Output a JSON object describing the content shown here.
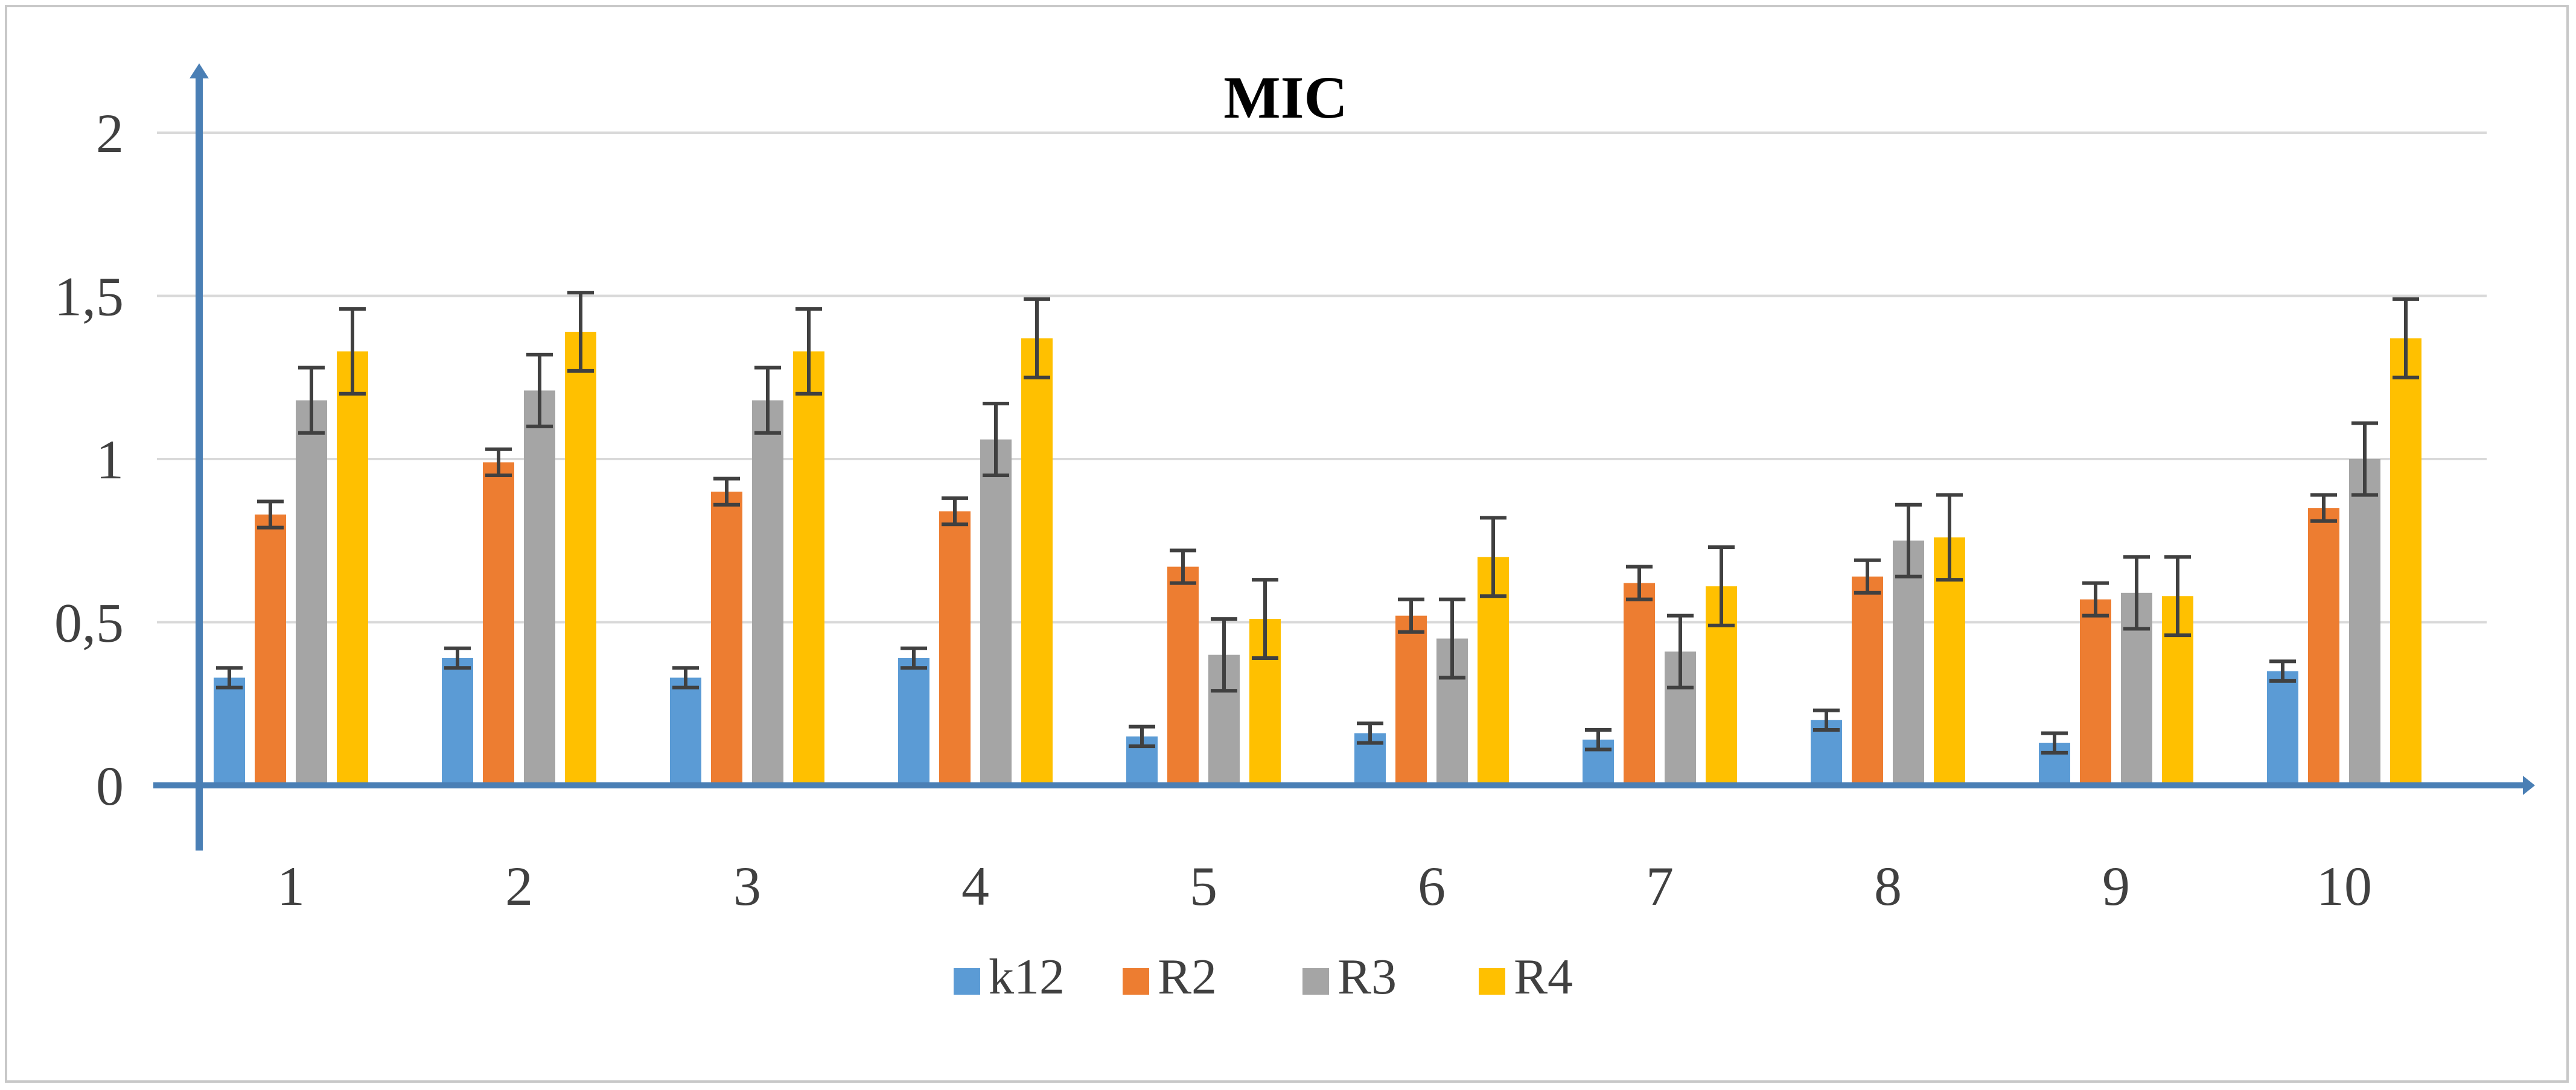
{
  "chart_data": {
    "type": "bar",
    "title": "MIC",
    "xlabel": "",
    "ylabel": "",
    "categories": [
      "1",
      "2",
      "3",
      "4",
      "5",
      "6",
      "7",
      "8",
      "9",
      "10"
    ],
    "ylim": [
      0,
      2.2
    ],
    "yticks": [
      0,
      0.5,
      1,
      1.5,
      2
    ],
    "ytick_labels": [
      "0",
      "0,5",
      "1",
      "1,5",
      "2"
    ],
    "grid": true,
    "legend_position": "bottom",
    "series": [
      {
        "name": "k12",
        "color": "#5b9bd5",
        "values": [
          0.33,
          0.39,
          0.33,
          0.39,
          0.15,
          0.16,
          0.14,
          0.2,
          0.13,
          0.35
        ],
        "errors": [
          0.03,
          0.03,
          0.03,
          0.03,
          0.03,
          0.03,
          0.03,
          0.03,
          0.03,
          0.03
        ]
      },
      {
        "name": "R2",
        "color": "#ed7d31",
        "values": [
          0.83,
          0.99,
          0.9,
          0.84,
          0.67,
          0.52,
          0.62,
          0.64,
          0.57,
          0.85
        ],
        "errors": [
          0.04,
          0.04,
          0.04,
          0.04,
          0.05,
          0.05,
          0.05,
          0.05,
          0.05,
          0.04
        ]
      },
      {
        "name": "R3",
        "color": "#a5a5a5",
        "values": [
          1.18,
          1.21,
          1.18,
          1.06,
          0.4,
          0.45,
          0.41,
          0.75,
          0.59,
          1.0
        ],
        "errors": [
          0.1,
          0.11,
          0.1,
          0.11,
          0.11,
          0.12,
          0.11,
          0.11,
          0.11,
          0.11
        ]
      },
      {
        "name": "R4",
        "color": "#ffc000",
        "values": [
          1.33,
          1.39,
          1.33,
          1.37,
          0.51,
          0.7,
          0.61,
          0.76,
          0.58,
          1.37
        ],
        "errors": [
          0.13,
          0.12,
          0.13,
          0.12,
          0.12,
          0.12,
          0.12,
          0.13,
          0.12,
          0.12
        ]
      }
    ],
    "axis_color": "#4a7fb5",
    "grid_color": "#d9d9d9",
    "error_bar_color": "#404040"
  }
}
